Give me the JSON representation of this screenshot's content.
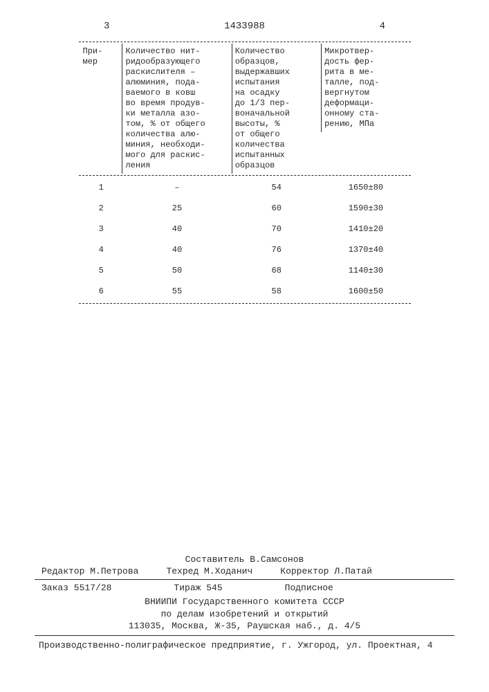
{
  "header": {
    "page_left": "3",
    "doc_number": "1433988",
    "page_right": "4"
  },
  "table": {
    "columns": {
      "c0": "При-\nмер",
      "c1": "Количество нит-\nридообразующего\nраскислителя –\nалюминия, пода-\nваемого в ковш\nво время продув-\nки металла азо-\nтом, % от общего\nколичества алю-\nминия, необходи-\nмого для раскис-\nления",
      "c2": "Количество\nобразцов,\nвыдержавших\nиспытания\nна осадку\nдо 1/3 пер-\nвоначальной\nвысоты, %\nот общего\nколичества\nиспытанных\nобразцов",
      "c3": "Микротвер-\nдость фер-\nрита в ме-\nталле, под-\nвергнутом\nдеформаци-\nонному ста-\nрению, МПа"
    },
    "rows": [
      {
        "c0": "1",
        "c1": "–",
        "c2": "54",
        "c3": "1650±80"
      },
      {
        "c0": "2",
        "c1": "25",
        "c2": "60",
        "c3": "1590±30"
      },
      {
        "c0": "3",
        "c1": "40",
        "c2": "70",
        "c3": "1410±20"
      },
      {
        "c0": "4",
        "c1": "40",
        "c2": "76",
        "c3": "1370±40"
      },
      {
        "c0": "5",
        "c1": "50",
        "c2": "68",
        "c3": "1140±30"
      },
      {
        "c0": "6",
        "c1": "55",
        "c2": "58",
        "c3": "1600±50"
      }
    ]
  },
  "footer": {
    "compiler": "Составитель В.Самсонов",
    "editor": "Редактор М.Петрова",
    "tech": "Техред М.Ходанич",
    "corrector": "Корректор Л.Патай",
    "order": "Заказ 5517/28",
    "tirage": "Тираж 545",
    "subscription": "Подписное",
    "inst1": "ВНИИПИ Государственного комитета СССР",
    "inst2": "по делам изобретений и открытий",
    "inst3": "113035, Москва, Ж-35, Раушская наб., д. 4/5",
    "print": "Производственно-полиграфическое предприятие, г. Ужгород, ул. Проектная, 4"
  }
}
